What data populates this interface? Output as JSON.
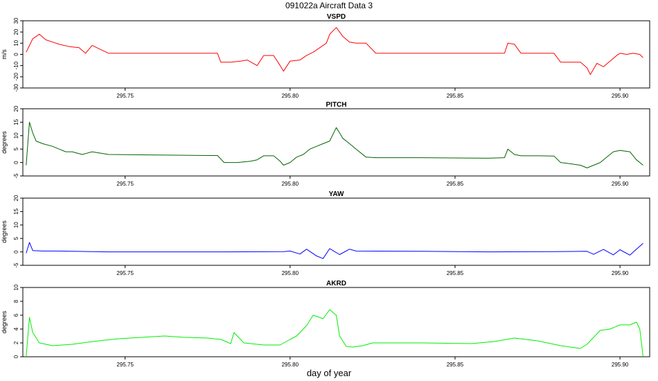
{
  "title": "091022a   Aircraft Data 3",
  "xlabel": "day of year",
  "chart_data": [
    {
      "type": "line",
      "title": "VSPD",
      "ylabel": "m/s",
      "color": "#ff0000",
      "xlim": [
        295.719,
        295.909
      ],
      "ylim": [
        -30,
        30
      ],
      "xticks": [
        "295.75",
        "295.80",
        "295.85",
        "295.90"
      ],
      "yticks": [
        "-30",
        "-20",
        "-10",
        "0",
        "10",
        "20",
        "30"
      ],
      "series": [
        {
          "x": [
            295.72,
            295.722,
            295.724,
            295.726,
            295.728,
            295.73,
            295.733,
            295.736,
            295.738,
            295.74,
            295.745,
            295.76,
            295.775,
            295.778,
            295.779,
            295.782,
            295.785,
            295.787,
            295.79,
            295.792,
            295.795,
            295.797,
            295.798,
            295.8,
            295.803,
            295.805,
            295.807,
            295.809,
            295.811,
            295.812,
            295.814,
            295.815,
            295.816,
            295.818,
            295.82,
            295.823,
            295.826,
            295.84,
            295.86,
            295.865,
            295.866,
            295.868,
            295.87,
            295.875,
            295.88,
            295.882,
            295.884,
            295.888,
            295.89,
            295.891,
            295.893,
            295.895,
            295.897,
            295.899,
            295.9,
            295.902,
            295.904,
            295.906,
            295.907
          ],
          "y": [
            2,
            14,
            18,
            13,
            11,
            9,
            7,
            6,
            1,
            8,
            1,
            1,
            1,
            1,
            -7,
            -7,
            -6,
            -5,
            -10,
            -1,
            -1,
            -10,
            -15,
            -6,
            -5,
            -1,
            2,
            6,
            10,
            18,
            24,
            20,
            16,
            11,
            10,
            10,
            1,
            1,
            1,
            1,
            10,
            9,
            1,
            1,
            1,
            -7,
            -7,
            -7,
            -12,
            -18,
            -8,
            -11,
            -6,
            -1,
            1,
            0,
            1,
            0,
            -3
          ]
        }
      ]
    },
    {
      "type": "line",
      "title": "PITCH",
      "ylabel": "degrees",
      "color": "#006400",
      "xlim": [
        295.719,
        295.909
      ],
      "ylim": [
        -5,
        20
      ],
      "xticks": [
        "295.75",
        "295.80",
        "295.85",
        "295.90"
      ],
      "yticks": [
        "-5",
        "0",
        "5",
        "10",
        "15",
        "20"
      ],
      "series": [
        {
          "x": [
            295.72,
            295.721,
            295.722,
            295.723,
            295.725,
            295.728,
            295.73,
            295.732,
            295.734,
            295.737,
            295.74,
            295.745,
            295.76,
            295.775,
            295.778,
            295.78,
            295.784,
            295.788,
            295.79,
            295.792,
            295.795,
            295.797,
            295.798,
            295.8,
            295.802,
            295.804,
            295.806,
            295.808,
            295.81,
            295.812,
            295.814,
            295.815,
            295.816,
            295.818,
            295.82,
            295.823,
            295.826,
            295.84,
            295.86,
            295.865,
            295.866,
            295.868,
            295.87,
            295.875,
            295.88,
            295.882,
            295.884,
            295.888,
            295.89,
            295.892,
            295.894,
            295.896,
            295.898,
            295.9,
            295.903,
            295.905,
            295.907
          ],
          "y": [
            -1,
            15,
            11,
            8,
            7,
            6,
            5,
            4,
            4,
            3,
            4,
            3,
            2.8,
            2.6,
            2.6,
            0,
            0,
            0.5,
            1,
            2.5,
            2.5,
            0.5,
            -1,
            0,
            2,
            3,
            5,
            6,
            7,
            8,
            13,
            11,
            9,
            7,
            5,
            2,
            1.8,
            1.8,
            1.6,
            1.8,
            5,
            3,
            2.5,
            2.5,
            2.4,
            0,
            -0.3,
            -1,
            -2,
            -1,
            0,
            2,
            4,
            4.5,
            4,
            1,
            -1
          ]
        }
      ]
    },
    {
      "type": "line",
      "title": "YAW",
      "ylabel": "degrees",
      "color": "#0000ff",
      "xlim": [
        295.719,
        295.909
      ],
      "ylim": [
        -5,
        20
      ],
      "xticks": [
        "295.75",
        "295.80",
        "295.85",
        "295.90"
      ],
      "yticks": [
        "-5",
        "0",
        "5",
        "10",
        "15",
        "20"
      ],
      "series": [
        {
          "x": [
            295.72,
            295.721,
            295.722,
            295.725,
            295.73,
            295.745,
            295.76,
            295.78,
            295.798,
            295.8,
            295.803,
            295.805,
            295.808,
            295.81,
            295.812,
            295.815,
            295.818,
            295.82,
            295.84,
            295.86,
            295.88,
            295.89,
            295.892,
            295.895,
            295.898,
            295.9,
            295.903,
            295.905,
            295.907
          ],
          "y": [
            -0.5,
            3.5,
            0.5,
            0.3,
            0.3,
            0,
            0,
            0,
            0.1,
            0.3,
            -0.8,
            1,
            -1.5,
            -2.5,
            1.2,
            -1,
            1,
            0.3,
            0.2,
            0,
            0.1,
            0.2,
            -0.9,
            0.9,
            -1.1,
            0.8,
            -1.2,
            1,
            3.2
          ]
        }
      ]
    },
    {
      "type": "line",
      "title": "AKRD",
      "ylabel": "degrees",
      "color": "#00ee00",
      "xlim": [
        295.719,
        295.909
      ],
      "ylim": [
        0,
        10
      ],
      "xticks": [
        "295.75",
        "295.80",
        "295.85",
        "295.90"
      ],
      "yticks": [
        "0",
        "2",
        "4",
        "6",
        "8",
        "10"
      ],
      "series": [
        {
          "x": [
            295.72,
            295.721,
            295.722,
            295.724,
            295.728,
            295.734,
            295.742,
            295.748,
            295.755,
            295.762,
            295.768,
            295.775,
            295.779,
            295.782,
            295.783,
            295.786,
            295.792,
            295.797,
            295.8,
            295.802,
            295.805,
            295.807,
            295.81,
            295.812,
            295.814,
            295.815,
            295.817,
            295.819,
            295.822,
            295.825,
            295.84,
            295.855,
            295.862,
            295.868,
            295.875,
            295.882,
            295.888,
            295.89,
            295.892,
            295.894,
            295.897,
            295.9,
            295.903,
            295.905,
            295.906,
            295.907
          ],
          "y": [
            0,
            5.7,
            3.5,
            2,
            1.6,
            1.8,
            2.3,
            2.6,
            2.8,
            3,
            2.8,
            2.7,
            2.5,
            1.9,
            3.5,
            2,
            1.7,
            1.7,
            2.5,
            3,
            4.5,
            6,
            5.5,
            6.8,
            6,
            3,
            1.5,
            1.4,
            1.6,
            2,
            2,
            1.9,
            2.2,
            2.7,
            2.3,
            1.6,
            1.2,
            1.8,
            2.8,
            3.8,
            4,
            4.6,
            4.6,
            5,
            4,
            0
          ]
        }
      ]
    }
  ]
}
